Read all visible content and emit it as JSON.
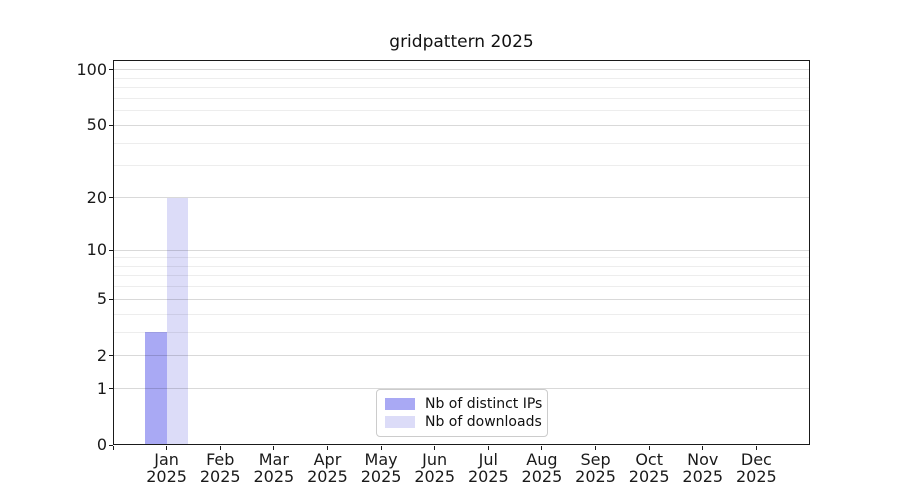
{
  "chart_data": {
    "type": "bar",
    "title": "gridpattern 2025",
    "xlabel": "",
    "ylabel": "",
    "yscale": "log10(1+x)",
    "ylim": [
      0,
      113
    ],
    "grid": true,
    "year": "2025",
    "categories": [
      "Jan",
      "Feb",
      "Mar",
      "Apr",
      "May",
      "Jun",
      "Jul",
      "Aug",
      "Sep",
      "Oct",
      "Nov",
      "Dec"
    ],
    "series": [
      {
        "name": "Nb of distinct IPs",
        "color": "#a9a9f4",
        "values": [
          3,
          0,
          0,
          0,
          0,
          0,
          0,
          0,
          0,
          0,
          0,
          0
        ]
      },
      {
        "name": "Nb of downloads",
        "color": "#dcdcf8",
        "values": [
          20,
          0,
          0,
          0,
          0,
          0,
          0,
          0,
          0,
          0,
          0,
          0
        ]
      }
    ],
    "y_ticks": [
      0,
      1,
      2,
      5,
      10,
      20,
      50,
      100
    ],
    "y_minor_gridlines": [
      3,
      4,
      6,
      7,
      8,
      9,
      30,
      40,
      60,
      70,
      80,
      90
    ],
    "legend": {
      "position": "lower center inside plot"
    }
  },
  "colors": {
    "background": "#ffffff",
    "spine": "#1a1a1a",
    "text": "#1a1a1a",
    "grid_major": "rgba(0,0,0,0.15)",
    "grid_minor": "rgba(0,0,0,0.07)",
    "legend_border": "#cccccc"
  }
}
